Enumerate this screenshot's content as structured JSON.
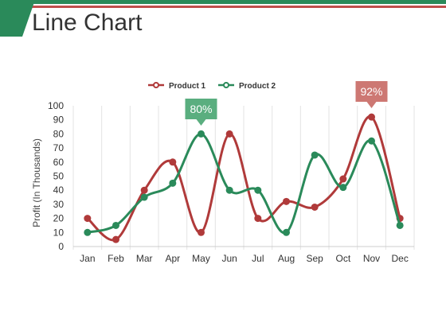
{
  "slide": {
    "title": "Line Chart"
  },
  "colors": {
    "accent_green": "#2a8a5a",
    "accent_red": "#b03a3a",
    "top_bar_red": "#c0504d",
    "callout_green": "#5aae7f",
    "callout_red": "#cd7873"
  },
  "chart_data": {
    "type": "line",
    "categories": [
      "Jan",
      "Feb",
      "Mar",
      "Apr",
      "May",
      "Jun",
      "Jul",
      "Aug",
      "Sep",
      "Oct",
      "Nov",
      "Dec"
    ],
    "series": [
      {
        "name": "Product 1",
        "color": "#b03a3a",
        "values": [
          20,
          5,
          40,
          60,
          10,
          80,
          20,
          32,
          28,
          48,
          92,
          20
        ]
      },
      {
        "name": "Product 2",
        "color": "#2a8a5a",
        "values": [
          10,
          15,
          35,
          45,
          80,
          40,
          40,
          10,
          65,
          42,
          75,
          15
        ]
      }
    ],
    "ylabel": "Profit (In Thousands)",
    "xlabel": "",
    "ylim": [
      0,
      100
    ],
    "yticks": [
      0,
      10,
      20,
      30,
      40,
      50,
      60,
      70,
      80,
      90,
      100
    ],
    "grid": "vertical",
    "legend": "top-center",
    "annotations": [
      {
        "label": "80%",
        "category": "May",
        "series": "Product 2",
        "color": "#5aae7f"
      },
      {
        "label": "92%",
        "category": "Nov",
        "series": "Product 1",
        "color": "#cd7873"
      }
    ]
  }
}
